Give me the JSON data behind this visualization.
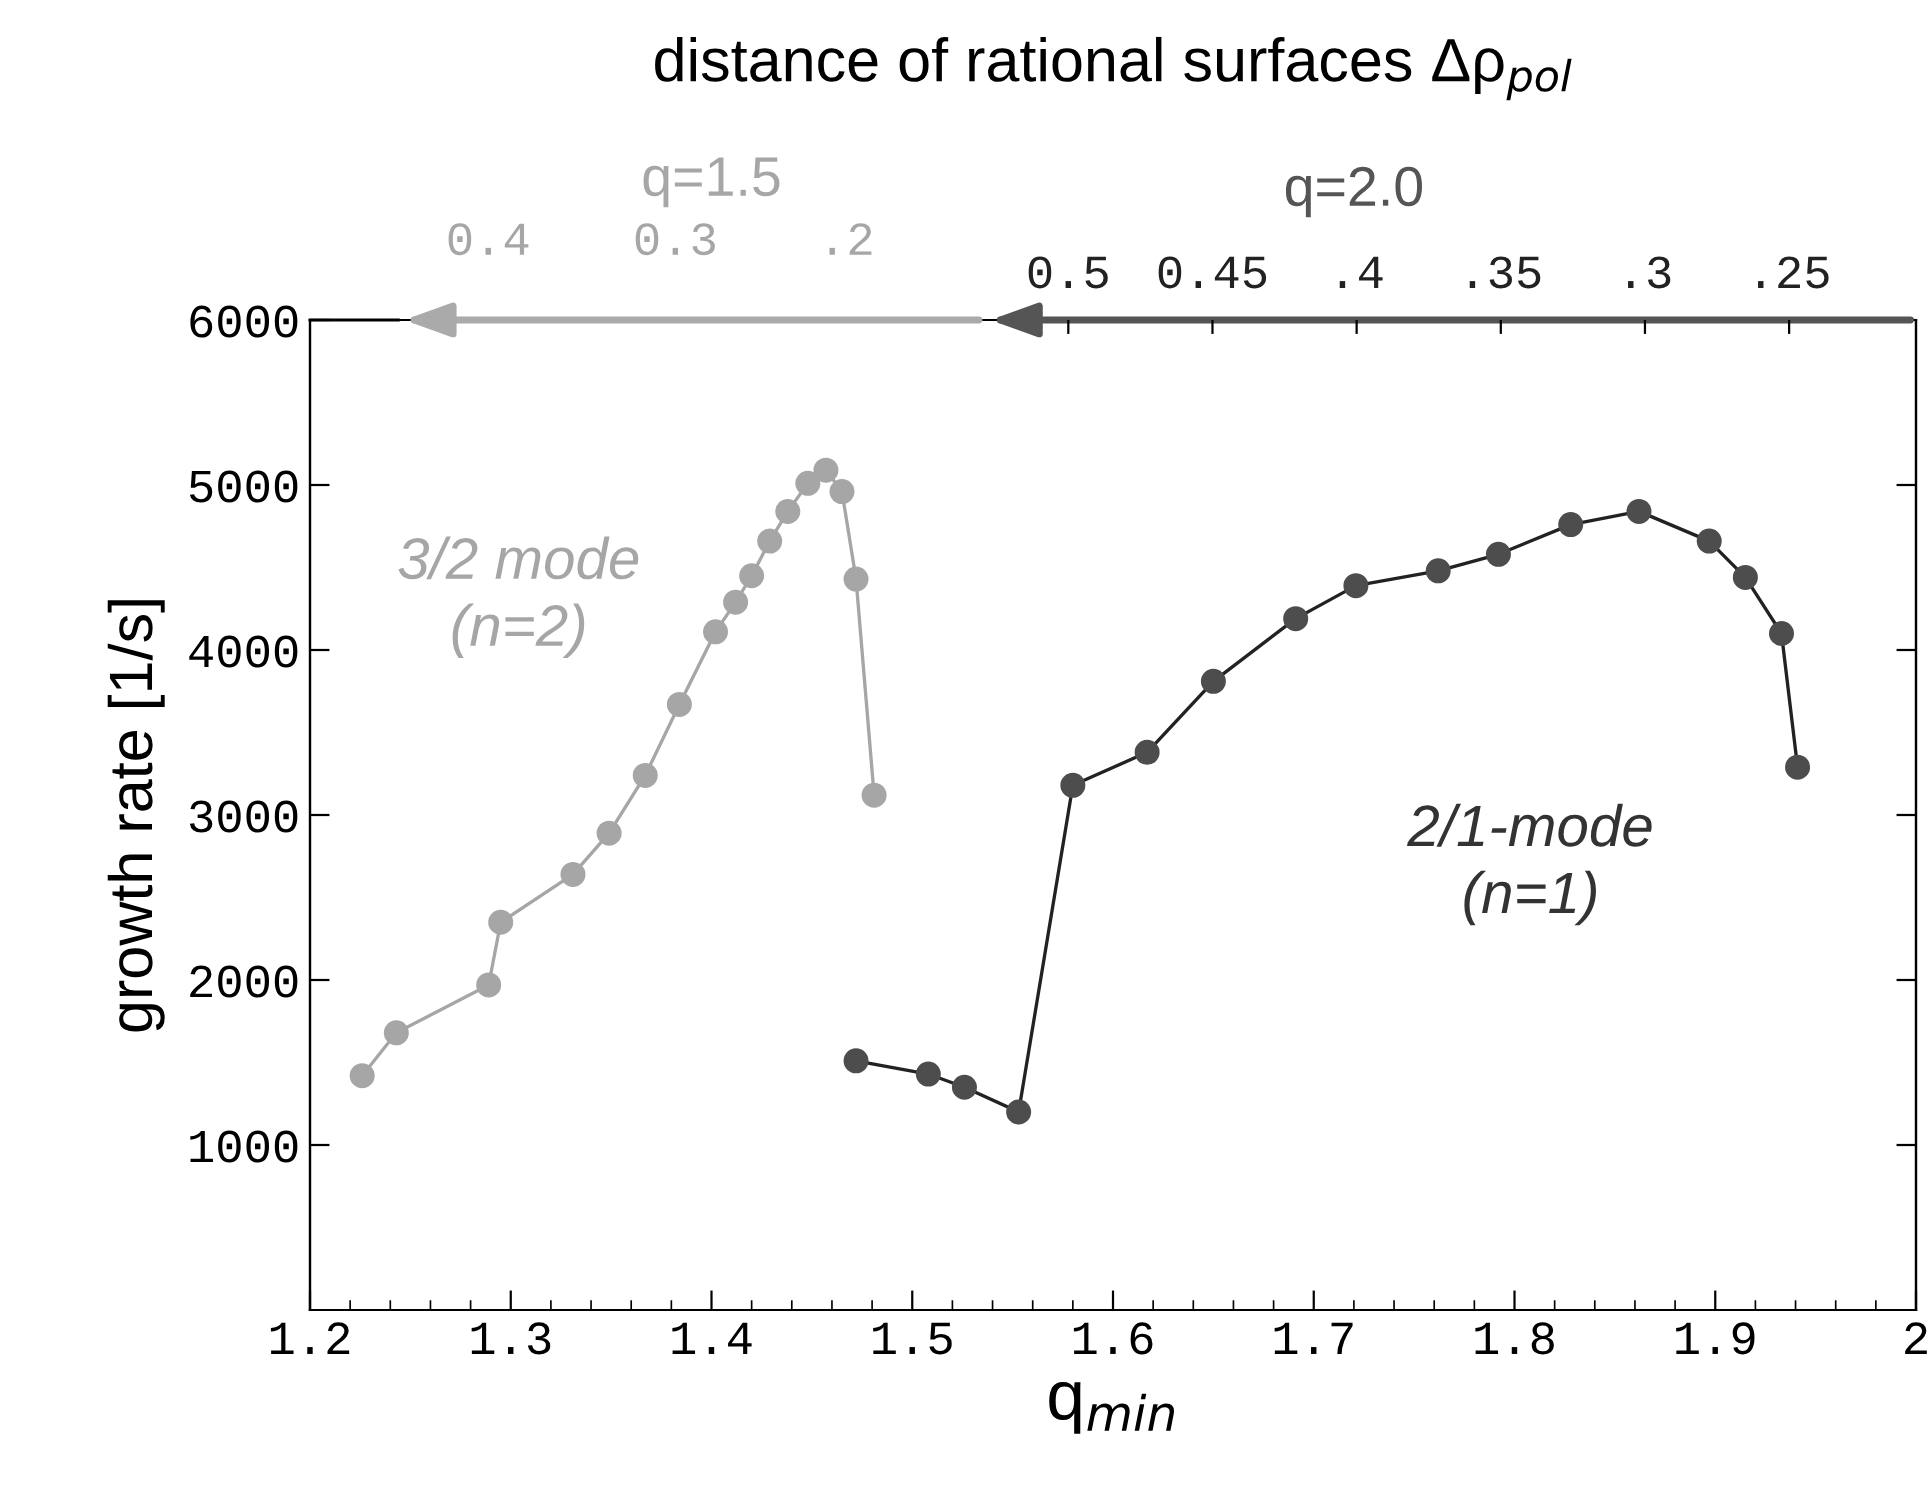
{
  "chart_data": {
    "type": "line",
    "xlabel": "q$_{min}$",
    "ylabel": "growth rate [1/s]",
    "x2label": "distance of rational surfaces Δρ$_{pol}$",
    "annotations": [
      "q=1.5",
      "q=2.0",
      "0.4",
      "0.3",
      ".2"
    ],
    "xlim": [
      1.2,
      2
    ],
    "xticks": [
      1.2,
      1.3,
      1.4,
      1.5,
      1.6,
      1.7,
      1.8,
      1.9,
      2
    ],
    "ylim": [
      0,
      6000
    ],
    "yticks": [
      1000,
      2000,
      3000,
      4000,
      5000,
      6000
    ],
    "x2lim": [
      0.763,
      0.206
    ],
    "x2ticks": [
      0.5,
      0.45,
      {
        "value": 0.4,
        "label": ".4"
      },
      {
        "value": 0.35,
        "label": ".35"
      },
      {
        "value": 0.3,
        "label": ".3"
      },
      {
        "value": 0.25,
        "label": ".25"
      }
    ],
    "marker": "circle",
    "line_style": "solid",
    "grid": false,
    "legend": false,
    "series": [
      {
        "name": "3/2 mode\n(n=2)",
        "color": "#a6a6a6",
        "x": [
          1.226,
          1.243,
          1.289,
          1.295,
          1.331,
          1.349,
          1.367,
          1.384,
          1.402,
          1.412,
          1.42,
          1.429,
          1.438,
          1.448,
          1.457,
          1.465,
          1.472,
          1.481
        ],
        "values": [
          1420,
          1680,
          1970,
          2350,
          2640,
          2890,
          3240,
          3670,
          4110,
          4290,
          4450,
          4660,
          4840,
          5010,
          5090,
          4960,
          4430,
          3120
        ]
      },
      {
        "name": "2/1-mode\n(n=1)",
        "color": "#4d4d4d",
        "x": [
          1.472,
          1.508,
          1.526,
          1.553,
          1.58,
          1.617,
          1.65,
          1.691,
          1.721,
          1.762,
          1.792,
          1.828,
          1.862,
          1.897,
          1.915,
          1.933,
          1.941
        ],
        "values": [
          1510,
          1430,
          1350,
          1200,
          3180,
          3380,
          3810,
          4190,
          4390,
          4480,
          4580,
          4760,
          4840,
          4660,
          4440,
          4100,
          3290
        ]
      }
    ]
  }
}
